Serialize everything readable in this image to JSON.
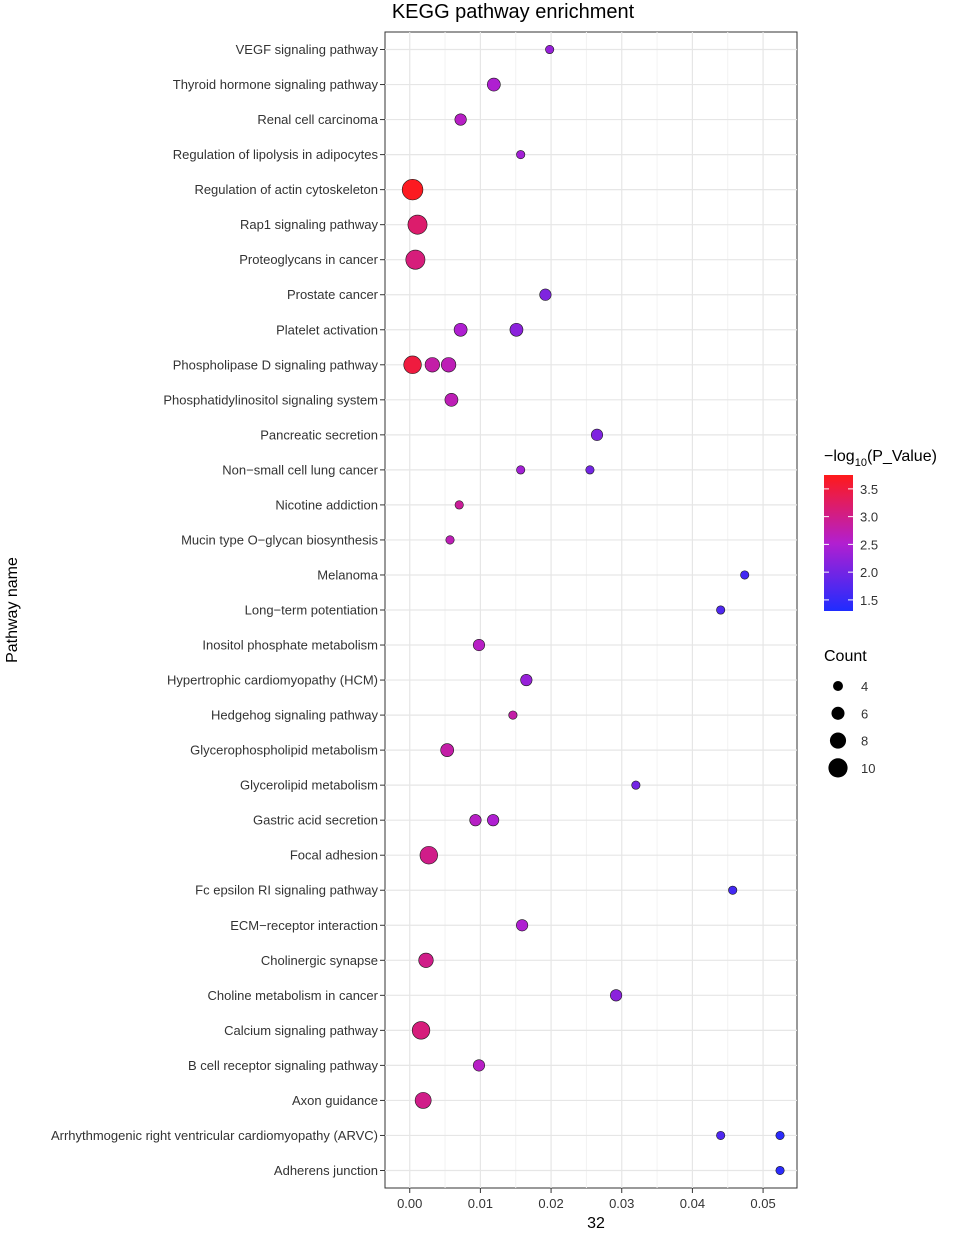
{
  "chart_data": {
    "type": "scatter",
    "title": "KEGG pathway enrichment",
    "xlabel": "32",
    "ylabel": "Pathway name",
    "xlim": [
      -0.0035,
      0.0548
    ],
    "x_ticks": [
      0.0,
      0.01,
      0.02,
      0.03,
      0.04,
      0.05
    ],
    "x_tick_labels": [
      "0.00",
      "0.01",
      "0.02",
      "0.03",
      "0.04",
      "0.05"
    ],
    "grid": true,
    "categories": [
      "VEGF signaling pathway",
      "Thyroid hormone signaling pathway",
      "Renal cell carcinoma",
      "Regulation of lipolysis in adipocytes",
      "Regulation of actin cytoskeleton",
      "Rap1 signaling pathway",
      "Proteoglycans in cancer",
      "Prostate cancer",
      "Platelet activation",
      "Phospholipase D signaling pathway",
      "Phosphatidylinositol signaling system",
      "Pancreatic secretion",
      "Non−small cell lung cancer",
      "Nicotine addiction",
      "Mucin type O−glycan biosynthesis",
      "Melanoma",
      "Long−term potentiation",
      "Inositol phosphate metabolism",
      "Hypertrophic cardiomyopathy (HCM)",
      "Hedgehog signaling pathway",
      "Glycerophospholipid metabolism",
      "Glycerolipid metabolism",
      "Gastric acid secretion",
      "Focal adhesion",
      "Fc epsilon RI signaling pathway",
      "ECM−receptor interaction",
      "Cholinergic synapse",
      "Choline metabolism in cancer",
      "Calcium signaling pathway",
      "B cell receptor signaling pathway",
      "Axon guidance",
      "Arrhythmogenic right ventricular cardiomyopathy (ARVC)",
      "Adherens junction"
    ],
    "points": [
      {
        "pathway": "VEGF signaling pathway",
        "x": 0.0198,
        "count": 3,
        "neglog10p": 2.3
      },
      {
        "pathway": "Thyroid hormone signaling pathway",
        "x": 0.0119,
        "count": 6,
        "neglog10p": 2.5
      },
      {
        "pathway": "Renal cell carcinoma",
        "x": 0.0072,
        "count": 5,
        "neglog10p": 2.6
      },
      {
        "pathway": "Regulation of lipolysis in adipocytes",
        "x": 0.0157,
        "count": 3,
        "neglog10p": 2.4
      },
      {
        "pathway": "Regulation of actin cytoskeleton",
        "x": 0.0004,
        "count": 11,
        "neglog10p": 3.7
      },
      {
        "pathway": "Rap1 signaling pathway",
        "x": 0.0011,
        "count": 10,
        "neglog10p": 3.2
      },
      {
        "pathway": "Proteoglycans in cancer",
        "x": 0.0008,
        "count": 10,
        "neglog10p": 3.1
      },
      {
        "pathway": "Prostate cancer",
        "x": 0.0192,
        "count": 5,
        "neglog10p": 2.1
      },
      {
        "pathway": "Platelet activation",
        "x": 0.0072,
        "count": 6,
        "neglog10p": 2.5
      },
      {
        "pathway": "Platelet activation",
        "x": 0.0151,
        "count": 6,
        "neglog10p": 2.2
      },
      {
        "pathway": "Phospholipase D signaling pathway",
        "x": 0.0004,
        "count": 9,
        "neglog10p": 3.5
      },
      {
        "pathway": "Phospholipase D signaling pathway",
        "x": 0.0032,
        "count": 7,
        "neglog10p": 2.8
      },
      {
        "pathway": "Phospholipase D signaling pathway",
        "x": 0.0055,
        "count": 7,
        "neglog10p": 2.7
      },
      {
        "pathway": "Phosphatidylinositol signaling system",
        "x": 0.0059,
        "count": 6,
        "neglog10p": 2.7
      },
      {
        "pathway": "Pancreatic secretion",
        "x": 0.0265,
        "count": 5,
        "neglog10p": 2.1
      },
      {
        "pathway": "Non−small cell lung cancer",
        "x": 0.0157,
        "count": 3,
        "neglog10p": 2.4
      },
      {
        "pathway": "Non−small cell lung cancer",
        "x": 0.0255,
        "count": 3,
        "neglog10p": 2.0
      },
      {
        "pathway": "Nicotine addiction",
        "x": 0.007,
        "count": 3,
        "neglog10p": 2.9
      },
      {
        "pathway": "Mucin type O−glycan biosynthesis",
        "x": 0.0057,
        "count": 3,
        "neglog10p": 2.7
      },
      {
        "pathway": "Melanoma",
        "x": 0.0474,
        "count": 3,
        "neglog10p": 1.6
      },
      {
        "pathway": "Long−term potentiation",
        "x": 0.044,
        "count": 3,
        "neglog10p": 1.7
      },
      {
        "pathway": "Inositol phosphate metabolism",
        "x": 0.0098,
        "count": 5,
        "neglog10p": 2.6
      },
      {
        "pathway": "Hypertrophic cardiomyopathy (HCM)",
        "x": 0.0165,
        "count": 5,
        "neglog10p": 2.3
      },
      {
        "pathway": "Hedgehog signaling pathway",
        "x": 0.0146,
        "count": 3,
        "neglog10p": 2.8
      },
      {
        "pathway": "Glycerophospholipid metabolism",
        "x": 0.0053,
        "count": 6,
        "neglog10p": 2.8
      },
      {
        "pathway": "Glycerolipid metabolism",
        "x": 0.032,
        "count": 3,
        "neglog10p": 2.0
      },
      {
        "pathway": "Gastric acid secretion",
        "x": 0.0093,
        "count": 5,
        "neglog10p": 2.6
      },
      {
        "pathway": "Gastric acid secretion",
        "x": 0.0118,
        "count": 5,
        "neglog10p": 2.5
      },
      {
        "pathway": "Focal adhesion",
        "x": 0.0027,
        "count": 9,
        "neglog10p": 3.0
      },
      {
        "pathway": "Fc epsilon RI signaling pathway",
        "x": 0.0457,
        "count": 3,
        "neglog10p": 1.6
      },
      {
        "pathway": "ECM−receptor interaction",
        "x": 0.0159,
        "count": 5,
        "neglog10p": 2.5
      },
      {
        "pathway": "Cholinergic synapse",
        "x": 0.0023,
        "count": 7,
        "neglog10p": 3.0
      },
      {
        "pathway": "Choline metabolism in cancer",
        "x": 0.0292,
        "count": 5,
        "neglog10p": 2.2
      },
      {
        "pathway": "Calcium signaling pathway",
        "x": 0.0016,
        "count": 9,
        "neglog10p": 3.1
      },
      {
        "pathway": "B cell receptor signaling pathway",
        "x": 0.0098,
        "count": 5,
        "neglog10p": 2.6
      },
      {
        "pathway": "Axon guidance",
        "x": 0.0019,
        "count": 8,
        "neglog10p": 3.0
      },
      {
        "pathway": "Arrhythmogenic right ventricular cardiomyopathy (ARVC)",
        "x": 0.044,
        "count": 3,
        "neglog10p": 1.7
      },
      {
        "pathway": "Arrhythmogenic right ventricular cardiomyopathy (ARVC)",
        "x": 0.0524,
        "count": 3,
        "neglog10p": 1.4
      },
      {
        "pathway": "Adherens junction",
        "x": 0.0524,
        "count": 3,
        "neglog10p": 1.4
      }
    ],
    "color_legend": {
      "title_prefix": "−log",
      "title_sub": "10",
      "title_suffix": "(P_Value)",
      "min": 1.3,
      "max": 3.75,
      "low_color": "#1f2cff",
      "mid_color": "#b21fd0",
      "high_color": "#ff1a1a",
      "ticks": [
        3.5,
        3.0,
        2.5,
        2.0,
        1.5
      ],
      "tick_labels": [
        "3.5",
        "3.0",
        "2.5",
        "2.0",
        "1.5"
      ]
    },
    "size_legend": {
      "title": "Count",
      "values": [
        4,
        6,
        8,
        10
      ],
      "labels": [
        "4",
        "6",
        "8",
        "10"
      ]
    }
  }
}
